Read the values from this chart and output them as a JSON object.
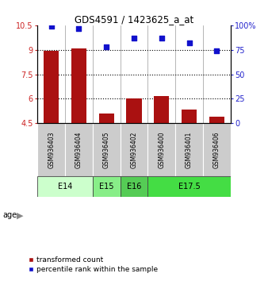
{
  "title": "GDS4591 / 1423625_a_at",
  "samples": [
    "GSM936403",
    "GSM936404",
    "GSM936405",
    "GSM936402",
    "GSM936400",
    "GSM936401",
    "GSM936406"
  ],
  "bar_values": [
    8.95,
    9.07,
    5.1,
    6.0,
    6.15,
    5.35,
    4.92
  ],
  "scatter_values": [
    99,
    97,
    78,
    87,
    87,
    82,
    74
  ],
  "bar_color": "#aa1111",
  "scatter_color": "#1111cc",
  "ylim_left": [
    4.5,
    10.5
  ],
  "ylim_right": [
    0,
    100
  ],
  "yticks_left": [
    4.5,
    6.0,
    7.5,
    9.0,
    10.5
  ],
  "ytick_labels_left": [
    "4.5",
    "6",
    "7.5",
    "9",
    "10.5"
  ],
  "yticks_right": [
    0,
    25,
    50,
    75,
    100
  ],
  "ytick_labels_right": [
    "0",
    "25",
    "50",
    "75",
    "100%"
  ],
  "hlines": [
    6.0,
    7.5,
    9.0
  ],
  "age_groups": [
    {
      "label": "E14",
      "start": 0,
      "end": 2,
      "color": "#ccffcc"
    },
    {
      "label": "E15",
      "start": 2,
      "end": 3,
      "color": "#88ee88"
    },
    {
      "label": "E16",
      "start": 3,
      "end": 4,
      "color": "#55cc55"
    },
    {
      "label": "E17.5",
      "start": 4,
      "end": 7,
      "color": "#44dd44"
    }
  ],
  "legend_bar_label": "transformed count",
  "legend_scatter_label": "percentile rank within the sample",
  "bar_bottom": 4.5,
  "left_tick_color": "#cc2222",
  "right_tick_color": "#2222cc",
  "sample_bg_color": "#cccccc",
  "age_border_color": "#444444"
}
